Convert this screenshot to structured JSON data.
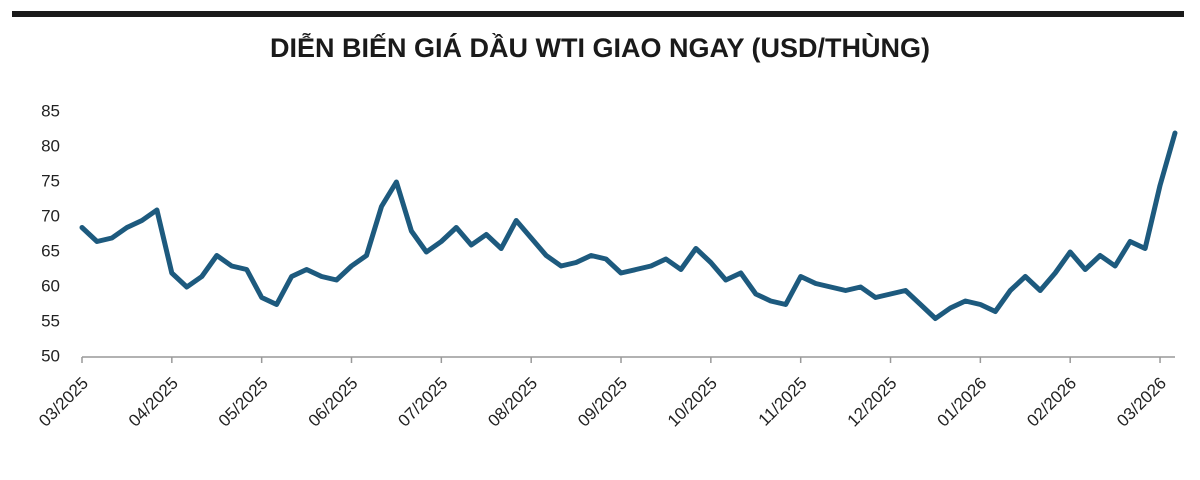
{
  "chart_data": {
    "type": "line",
    "title": "DIỄN BIẾN GIÁ DẦU WTI GIAO NGAY (USD/THÙNG)",
    "categories": [
      "03/2025",
      null,
      null,
      null,
      null,
      null,
      "04/2025",
      null,
      null,
      null,
      null,
      null,
      "05/2025",
      null,
      null,
      null,
      null,
      null,
      "06/2025",
      null,
      null,
      null,
      null,
      null,
      "07/2025",
      null,
      null,
      null,
      null,
      null,
      "08/2025",
      null,
      null,
      null,
      null,
      null,
      "09/2025",
      null,
      null,
      null,
      null,
      null,
      "10/2025",
      null,
      null,
      null,
      null,
      null,
      "11/2025",
      null,
      null,
      null,
      null,
      null,
      "12/2025",
      null,
      null,
      null,
      null,
      null,
      "01/2026",
      null,
      null,
      null,
      null,
      null,
      "02/2026",
      null,
      null,
      null,
      null,
      null,
      "03/2026",
      null
    ],
    "values": [
      68.5,
      66.5,
      67,
      68.5,
      69.5,
      71,
      62,
      60,
      61.5,
      64.5,
      63,
      62.5,
      58.5,
      57.5,
      61.5,
      62.5,
      61.5,
      61,
      63,
      64.5,
      71.5,
      75,
      68,
      65,
      66.5,
      68.5,
      66,
      67.5,
      65.5,
      69.5,
      67,
      64.5,
      63,
      63.5,
      64.5,
      64,
      62,
      62.5,
      63,
      64,
      62.5,
      65.5,
      63.5,
      61,
      62,
      59,
      58,
      57.5,
      61.5,
      60.5,
      60,
      59.5,
      60,
      58.5,
      59,
      59.5,
      57.5,
      55.5,
      57,
      58,
      57.5,
      56.5,
      59.5,
      61.5,
      59.5,
      62,
      65,
      62.5,
      64.5,
      63,
      66.5,
      65.5,
      74.5,
      82
    ],
    "color": "#1d5a7e",
    "ylim": [
      50,
      85
    ],
    "yticks": [
      50,
      55,
      60,
      65,
      70,
      75,
      80,
      85
    ],
    "grid": false
  }
}
